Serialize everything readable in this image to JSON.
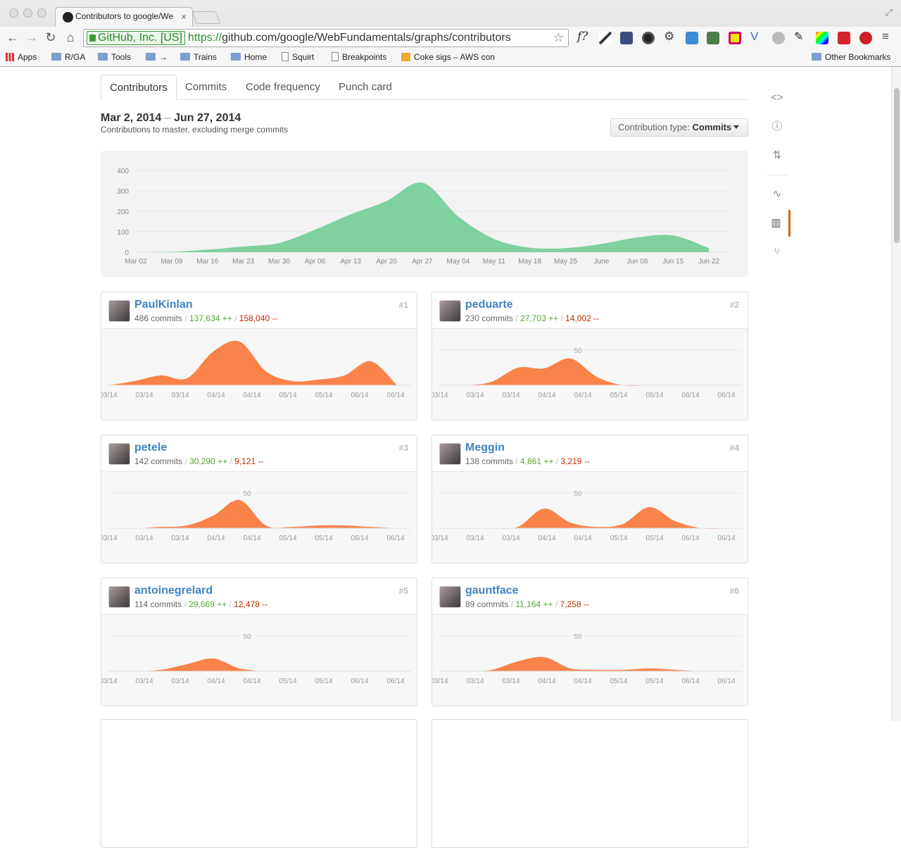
{
  "browser": {
    "tab_title": "Contributors to google/We",
    "ev_label": "GitHub, Inc. [US]",
    "url_scheme": "https://",
    "url_rest": "github.com/google/WebFundamentals/graphs/contributors",
    "bookmarks": [
      "Apps",
      "R/GA",
      "Tools",
      "→",
      "Trains",
      "Home",
      "Squirt",
      "Breakpoints",
      "Coke sigs – AWS con",
      "Other Bookmarks"
    ]
  },
  "graph_tabs": [
    "Contributors",
    "Commits",
    "Code frequency",
    "Punch card"
  ],
  "range": {
    "start": "Mar 2, 2014",
    "sep": "–",
    "end": "Jun 27, 2014",
    "subtitle": "Contributions to master, excluding merge commits"
  },
  "contribution_type": {
    "label": "Contribution type:",
    "value": "Commits"
  },
  "chart_data": [
    {
      "type": "area",
      "color": "#7fd1a0",
      "x": [
        "Mar 02",
        "Mar 09",
        "Mar 16",
        "Mar 23",
        "Mar 30",
        "Apr 06",
        "Apr 13",
        "Apr 20",
        "Apr 27",
        "May 04",
        "May 11",
        "May 18",
        "May 25",
        "June",
        "Jun 08",
        "Jun 15",
        "Jun 22"
      ],
      "y_ticks": [
        "400",
        "300",
        "200",
        "100",
        "0"
      ],
      "ylim": [
        0,
        400
      ],
      "values": [
        0,
        2,
        12,
        28,
        45,
        110,
        185,
        250,
        340,
        175,
        65,
        22,
        20,
        40,
        72,
        82,
        20
      ]
    }
  ],
  "contributors": [
    {
      "name": "PaulKinlan",
      "rank": "#1",
      "commits": "486 commits",
      "adds": "137,634 ++",
      "dels": "158,040 --",
      "y_tick": "",
      "values": [
        0,
        6,
        14,
        10,
        48,
        62,
        20,
        6,
        8,
        14,
        34,
        0
      ]
    },
    {
      "name": "peduarte",
      "rank": "#2",
      "commits": "230 commits",
      "adds": "27,703 ++",
      "dels": "14,002 --",
      "y_tick": "50",
      "values": [
        0,
        0,
        5,
        25,
        24,
        38,
        12,
        0,
        0,
        0,
        0,
        0
      ]
    },
    {
      "name": "petele",
      "rank": "#3",
      "commits": "142 commits",
      "adds": "30,290 ++",
      "dels": "9,121 --",
      "y_tick": "50",
      "values": [
        0,
        0,
        2,
        4,
        18,
        40,
        4,
        2,
        4,
        4,
        2,
        0
      ]
    },
    {
      "name": "Meggin",
      "rank": "#4",
      "commits": "138 commits",
      "adds": "4,861 ++",
      "dels": "3,219 --",
      "y_tick": "50",
      "values": [
        0,
        0,
        0,
        2,
        28,
        8,
        2,
        6,
        30,
        10,
        0,
        0
      ]
    },
    {
      "name": "antoinegrelard",
      "rank": "#5",
      "commits": "114 commits",
      "adds": "29,669 ++",
      "dels": "12,478 --",
      "y_tick": "50",
      "values": [
        0,
        0,
        2,
        10,
        18,
        4,
        0,
        0,
        0,
        0,
        0,
        0
      ]
    },
    {
      "name": "gauntface",
      "rank": "#6",
      "commits": "89 commits",
      "adds": "11,164 ++",
      "dels": "7,258 --",
      "y_tick": "50",
      "values": [
        0,
        0,
        2,
        14,
        20,
        4,
        2,
        2,
        4,
        2,
        0,
        0
      ]
    }
  ],
  "card_x_ticks": [
    "03/14",
    "03/14",
    "03/14",
    "04/14",
    "04/14",
    "05/14",
    "05/14",
    "06/14",
    "06/14"
  ],
  "card_color": "#f9834a"
}
